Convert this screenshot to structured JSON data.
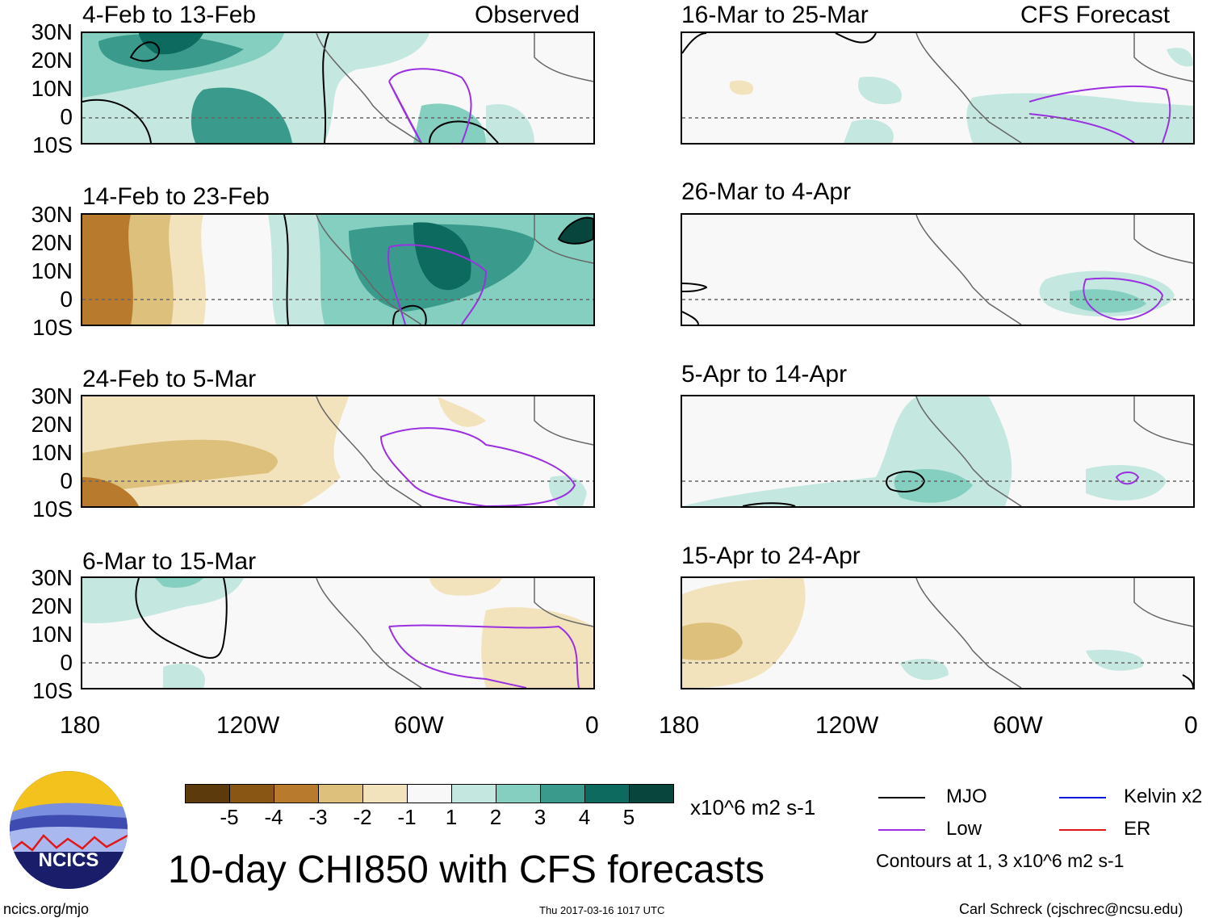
{
  "panels": [
    {
      "title": "4-Feb to 13-Feb",
      "tag": "Observed"
    },
    {
      "title": "16-Mar to 25-Mar",
      "tag": "CFS Forecast"
    },
    {
      "title": "14-Feb to 23-Feb",
      "tag": ""
    },
    {
      "title": "26-Mar to 4-Apr",
      "tag": ""
    },
    {
      "title": "24-Feb to 5-Mar",
      "tag": ""
    },
    {
      "title": "5-Apr to 14-Apr",
      "tag": ""
    },
    {
      "title": "6-Mar to 15-Mar",
      "tag": ""
    },
    {
      "title": "15-Apr to 24-Apr",
      "tag": ""
    }
  ],
  "lat_labels": [
    "30N",
    "20N",
    "10N",
    "0",
    "10S"
  ],
  "lon_labels": [
    "180",
    "120W",
    "60W",
    "0"
  ],
  "colorbar": {
    "colors": [
      "#5c3a0c",
      "#8a5614",
      "#b87b2e",
      "#dcc07c",
      "#f3e3bd",
      "#f8f8f8",
      "#c4e8df",
      "#85cfc0",
      "#3a9b8c",
      "#0c6a5e",
      "#07453d"
    ],
    "labels": [
      "-5",
      "-4",
      "-3",
      "-2",
      "-1",
      "1",
      "2",
      "3",
      "4",
      "5"
    ],
    "units": "x10^6 m2 s-1"
  },
  "legend": [
    {
      "label": "MJO",
      "color": "#000000"
    },
    {
      "label": "Kelvin x2",
      "color": "#0018e0"
    },
    {
      "label": "Low",
      "color": "#9a30e0"
    },
    {
      "label": "ER",
      "color": "#e01818"
    }
  ],
  "contour_note": "Contours at 1, 3 x10^6 m2 s-1",
  "main_title": "10-day CHI850 with CFS forecasts",
  "logo_text": "NCICS",
  "footer": {
    "left": "ncics.org/mjo",
    "center": "Thu 2017-03-16 1017 UTC",
    "right": "Carl Schreck (cjschrec@ncsu.edu)"
  }
}
